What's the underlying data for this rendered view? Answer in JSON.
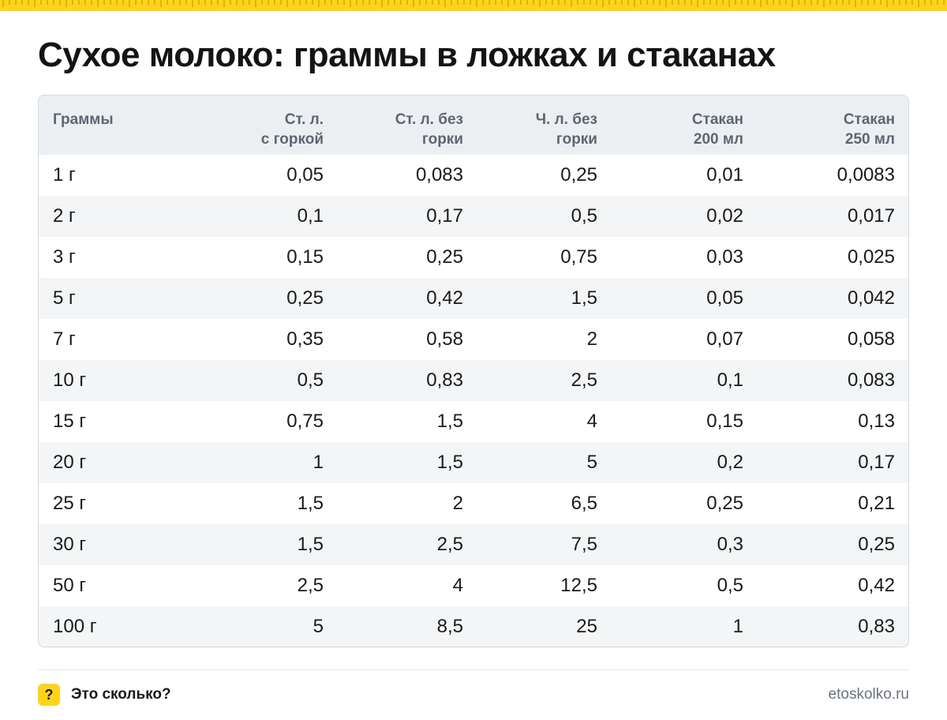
{
  "title": "Сухое молоко: граммы в ложках и стаканах",
  "table": {
    "headers": [
      {
        "line1": "Граммы",
        "line2": ""
      },
      {
        "line1": "Ст. л.",
        "line2": "с горкой"
      },
      {
        "line1": "Ст. л. без",
        "line2": "горки"
      },
      {
        "line1": "Ч. л. без",
        "line2": "горки"
      },
      {
        "line1": "Стакан",
        "line2": "200 мл"
      },
      {
        "line1": "Стакан",
        "line2": "250 мл"
      }
    ],
    "rows": [
      [
        "1 г",
        "0,05",
        "0,083",
        "0,25",
        "0,01",
        "0,0083"
      ],
      [
        "2 г",
        "0,1",
        "0,17",
        "0,5",
        "0,02",
        "0,017"
      ],
      [
        "3 г",
        "0,15",
        "0,25",
        "0,75",
        "0,03",
        "0,025"
      ],
      [
        "5 г",
        "0,25",
        "0,42",
        "1,5",
        "0,05",
        "0,042"
      ],
      [
        "7 г",
        "0,35",
        "0,58",
        "2",
        "0,07",
        "0,058"
      ],
      [
        "10 г",
        "0,5",
        "0,83",
        "2,5",
        "0,1",
        "0,083"
      ],
      [
        "15 г",
        "0,75",
        "1,5",
        "4",
        "0,15",
        "0,13"
      ],
      [
        "20 г",
        "1",
        "1,5",
        "5",
        "0,2",
        "0,17"
      ],
      [
        "25 г",
        "1,5",
        "2",
        "6,5",
        "0,25",
        "0,21"
      ],
      [
        "30 г",
        "1,5",
        "2,5",
        "7,5",
        "0,3",
        "0,25"
      ],
      [
        "50 г",
        "2,5",
        "4",
        "12,5",
        "0,5",
        "0,42"
      ],
      [
        "100 г",
        "5",
        "8,5",
        "25",
        "1",
        "0,83"
      ]
    ]
  },
  "footer": {
    "badge": "?",
    "brand": "Это сколько?",
    "site": "etoskolko.ru"
  },
  "colors": {
    "accent": "#ffd31a",
    "header_bg": "#eceff2",
    "row_alt_bg": "#f3f5f7",
    "header_text": "#5d6670"
  },
  "icons": {
    "ruler": "ruler-stripe",
    "badge": "question-badge-icon"
  }
}
